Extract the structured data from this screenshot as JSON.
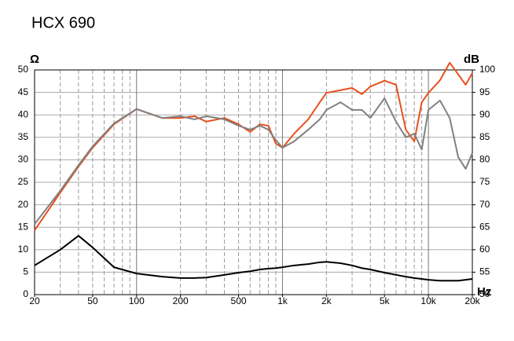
{
  "chart_data": {
    "type": "line",
    "title": "HCX 690",
    "x_label": "Hz",
    "y_label": "Ω",
    "y2_label": "dB",
    "x": [
      20,
      30,
      40,
      50,
      70,
      100,
      150,
      200,
      250,
      300,
      400,
      500,
      600,
      700,
      800,
      900,
      1000,
      1200,
      1500,
      1800,
      2000,
      2500,
      3000,
      3500,
      4000,
      5000,
      6000,
      7000,
      8000,
      9000,
      10000,
      12000,
      14000,
      16000,
      18000,
      20000
    ],
    "series": [
      {
        "color": "#e8501e",
        "axis": "y2",
        "values": [
          64.3,
          72.7,
          78.5,
          82.7,
          87.9,
          91.3,
          89.3,
          89.3,
          89.7,
          88.5,
          89.3,
          87.9,
          86.2,
          87.9,
          87.6,
          83.6,
          82.7,
          85.8,
          89,
          92.8,
          94.9,
          95.5,
          96,
          94.6,
          96.3,
          97.6,
          96.7,
          86.7,
          84.1,
          92.8,
          94.9,
          97.7,
          101.6,
          99,
          96.7,
          99.3
        ]
      },
      {
        "color": "#808080",
        "axis": "y2",
        "values": [
          65.7,
          73.1,
          78.8,
          83,
          88.1,
          91.3,
          89.3,
          89.7,
          89,
          89.7,
          89,
          87.6,
          86.7,
          87.6,
          86.7,
          84.4,
          82.7,
          84.1,
          86.7,
          89,
          91.1,
          92.8,
          91.1,
          91.1,
          89.3,
          93.7,
          88.5,
          85,
          85.8,
          82.3,
          91.1,
          93.2,
          89.3,
          80.6,
          78,
          81.5
        ]
      },
      {
        "color": "#000000",
        "values": [
          6.5,
          10,
          13.1,
          10.5,
          6.1,
          4.7,
          4,
          3.7,
          3.7,
          3.8,
          4.4,
          4.9,
          5.2,
          5.6,
          5.8,
          5.9,
          6.1,
          6.5,
          6.8,
          7.2,
          7.3,
          7,
          6.5,
          5.9,
          5.6,
          4.9,
          4.4,
          4,
          3.7,
          3.5,
          3.3,
          3.1,
          3.1,
          3.1,
          3.3,
          3.5
        ]
      }
    ],
    "log_x": true,
    "xlim": [
      20,
      20000
    ],
    "xticks": [
      20,
      50,
      100,
      200,
      500,
      {
        "value": 1000,
        "label": "1k"
      },
      {
        "value": 2000,
        "label": "2k"
      },
      {
        "value": 5000,
        "label": "5k"
      },
      {
        "value": 10000,
        "label": "10k"
      },
      {
        "value": 20000,
        "label": "20k"
      }
    ],
    "xgrid": [
      30,
      40,
      50,
      60,
      70,
      80,
      90,
      100,
      200,
      300,
      400,
      500,
      600,
      700,
      800,
      900,
      1000,
      2000,
      3000,
      4000,
      5000,
      6000,
      7000,
      8000,
      9000,
      10000
    ],
    "ylim": [
      0,
      50
    ],
    "yticks": [
      0,
      5,
      10,
      15,
      20,
      25,
      30,
      35,
      40,
      45,
      50
    ],
    "y2lim": [
      50,
      100
    ],
    "y2ticks": [
      50,
      55,
      60,
      65,
      70,
      75,
      80,
      85,
      90,
      95,
      100
    ],
    "grid": true
  }
}
